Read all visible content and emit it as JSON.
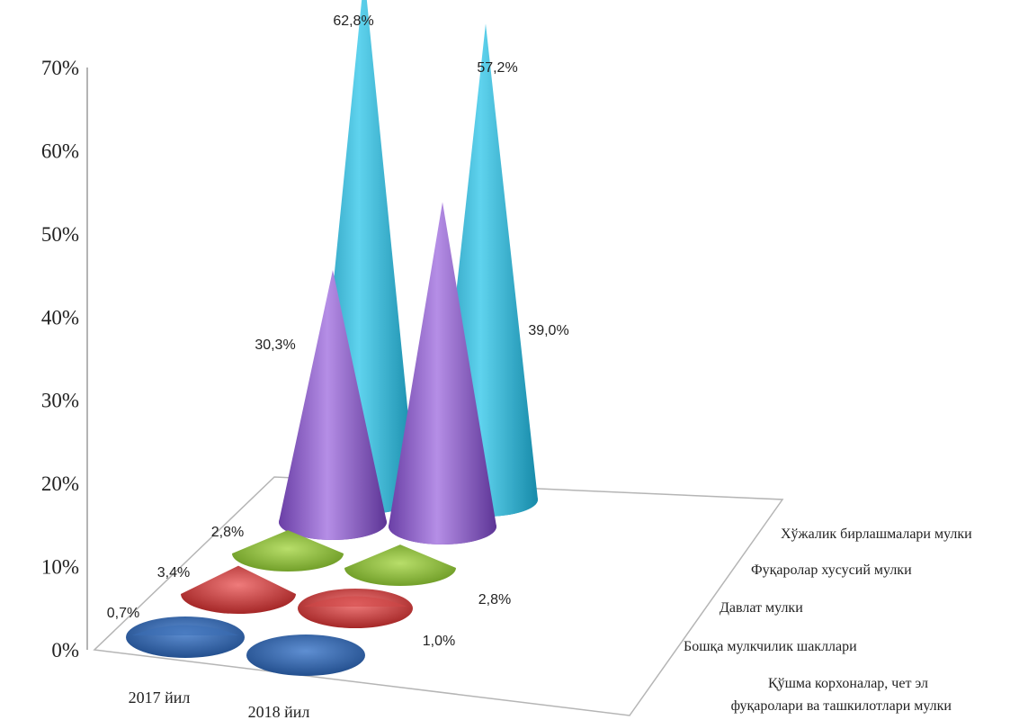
{
  "chart_data": {
    "type": "bar",
    "subtype": "3d-cone",
    "categories": [
      "2017 йил",
      "2018 йил"
    ],
    "series": [
      {
        "name": "Хўжалик бирлашмалари мулки",
        "values": [
          62.8,
          57.2
        ],
        "labels": [
          "62,8%",
          "57,2%"
        ],
        "color": "#3fbcd9"
      },
      {
        "name": "Фуқаролар хусусий мулки",
        "values": [
          30.3,
          39.0
        ],
        "labels": [
          "30,3%",
          "39,0%"
        ],
        "color": "#9a6fcf"
      },
      {
        "name": "Давлат мулки",
        "values": [
          2.8,
          2.8
        ],
        "labels": [
          "2,8%",
          "2,8%"
        ],
        "color": "#8cb83c"
      },
      {
        "name": "Бошқа мулкчилик шакллари",
        "values": [
          3.4,
          1.0
        ],
        "labels": [
          "3,4%",
          "1,0%"
        ],
        "color": "#d04545"
      },
      {
        "name": "Қўшма корхоналар, чет эл фуқаролари ва ташкилотлари мулки",
        "name_lines": [
          "Қўшма корхоналар, чет эл",
          "фуқаролари ва ташкилотлари мулки"
        ],
        "values": [
          0.7,
          0.0
        ],
        "labels": [
          "0,7%",
          ""
        ],
        "color": "#3b6eb5"
      }
    ],
    "y_ticks": [
      "0%",
      "10%",
      "20%",
      "30%",
      "40%",
      "50%",
      "60%",
      "70%"
    ],
    "ylim": [
      0,
      70
    ],
    "grid": false,
    "legend": "series-depth-axis-right"
  }
}
